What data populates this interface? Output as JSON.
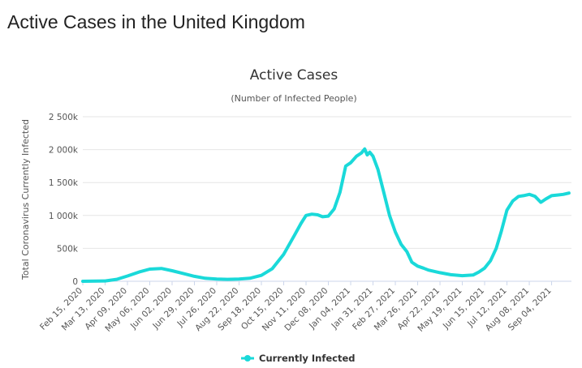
{
  "page": {
    "title": "Active Cases in the United Kingdom"
  },
  "chart_data": {
    "type": "line",
    "title": "Active Cases",
    "subtitle": "(Number of Infected People)",
    "ylabel": "Total Coronavirus Currently Infected",
    "xlabel": "",
    "ylim": [
      0,
      2500000
    ],
    "yticks": [
      0,
      500000,
      1000000,
      1500000,
      2000000,
      2500000
    ],
    "ytick_labels": [
      "0",
      "500k",
      "1 000k",
      "1 500k",
      "2 000k",
      "2 500k"
    ],
    "x_categories": [
      "Feb 15, 2020",
      "Mar 13, 2020",
      "Apr 09, 2020",
      "May 06, 2020",
      "Jun 02, 2020",
      "Jun 29, 2020",
      "Jul 26, 2020",
      "Aug 22, 2020",
      "Sep 18, 2020",
      "Oct 15, 2020",
      "Nov 11, 2020",
      "Dec 08, 2020",
      "Jan 04, 2021",
      "Jan 31, 2021",
      "Feb 27, 2021",
      "Mar 26, 2021",
      "Apr 22, 2021",
      "May 19, 2021",
      "Jun 15, 2021",
      "Jul 12, 2021",
      "Aug 08, 2021",
      "Sep 04, 2021"
    ],
    "grid": true,
    "legend": "bottom-center",
    "color": "#1ad9d9",
    "series": [
      {
        "name": "Currently Infected",
        "x": [
          "Feb 15, 2020",
          "Mar 13, 2020",
          "Mar 27, 2020",
          "Apr 09, 2020",
          "Apr 23, 2020",
          "May 06, 2020",
          "May 20, 2020",
          "Jun 02, 2020",
          "Jun 15, 2020",
          "Jun 29, 2020",
          "Jul 12, 2020",
          "Jul 26, 2020",
          "Aug 08, 2020",
          "Aug 22, 2020",
          "Sep 04, 2020",
          "Sep 18, 2020",
          "Oct 01, 2020",
          "Oct 15, 2020",
          "Oct 28, 2020",
          "Nov 05, 2020",
          "Nov 11, 2020",
          "Nov 18, 2020",
          "Nov 25, 2020",
          "Dec 01, 2020",
          "Dec 08, 2020",
          "Dec 15, 2020",
          "Dec 22, 2020",
          "Dec 29, 2020",
          "Jan 04, 2021",
          "Jan 11, 2021",
          "Jan 17, 2021",
          "Jan 21, 2021",
          "Jan 24, 2021",
          "Jan 27, 2021",
          "Jan 31, 2021",
          "Feb 06, 2021",
          "Feb 13, 2021",
          "Feb 20, 2021",
          "Feb 27, 2021",
          "Mar 06, 2021",
          "Mar 13, 2021",
          "Mar 19, 2021",
          "Mar 26, 2021",
          "Apr 02, 2021",
          "Apr 08, 2021",
          "Apr 22, 2021",
          "May 05, 2021",
          "May 19, 2021",
          "Jun 01, 2021",
          "Jun 08, 2021",
          "Jun 15, 2021",
          "Jun 22, 2021",
          "Jun 29, 2021",
          "Jul 05, 2021",
          "Jul 12, 2021",
          "Jul 19, 2021",
          "Jul 26, 2021",
          "Aug 01, 2021",
          "Aug 08, 2021",
          "Aug 15, 2021",
          "Aug 22, 2021",
          "Aug 28, 2021",
          "Sep 04, 2021",
          "Sep 11, 2021",
          "Sep 18, 2021",
          "Sep 25, 2021"
        ],
        "values": [
          0,
          5000,
          30000,
          80000,
          140000,
          185000,
          195000,
          160000,
          120000,
          75000,
          45000,
          35000,
          30000,
          35000,
          45000,
          90000,
          190000,
          410000,
          700000,
          880000,
          1000000,
          1020000,
          1010000,
          980000,
          990000,
          1100000,
          1350000,
          1750000,
          1800000,
          1900000,
          1950000,
          2010000,
          1920000,
          1960000,
          1900000,
          1700000,
          1350000,
          1000000,
          750000,
          560000,
          450000,
          290000,
          230000,
          200000,
          170000,
          130000,
          100000,
          85000,
          95000,
          140000,
          200000,
          310000,
          500000,
          750000,
          1080000,
          1220000,
          1290000,
          1300000,
          1320000,
          1290000,
          1200000,
          1250000,
          1300000,
          1310000,
          1320000,
          1340000
        ]
      }
    ]
  }
}
